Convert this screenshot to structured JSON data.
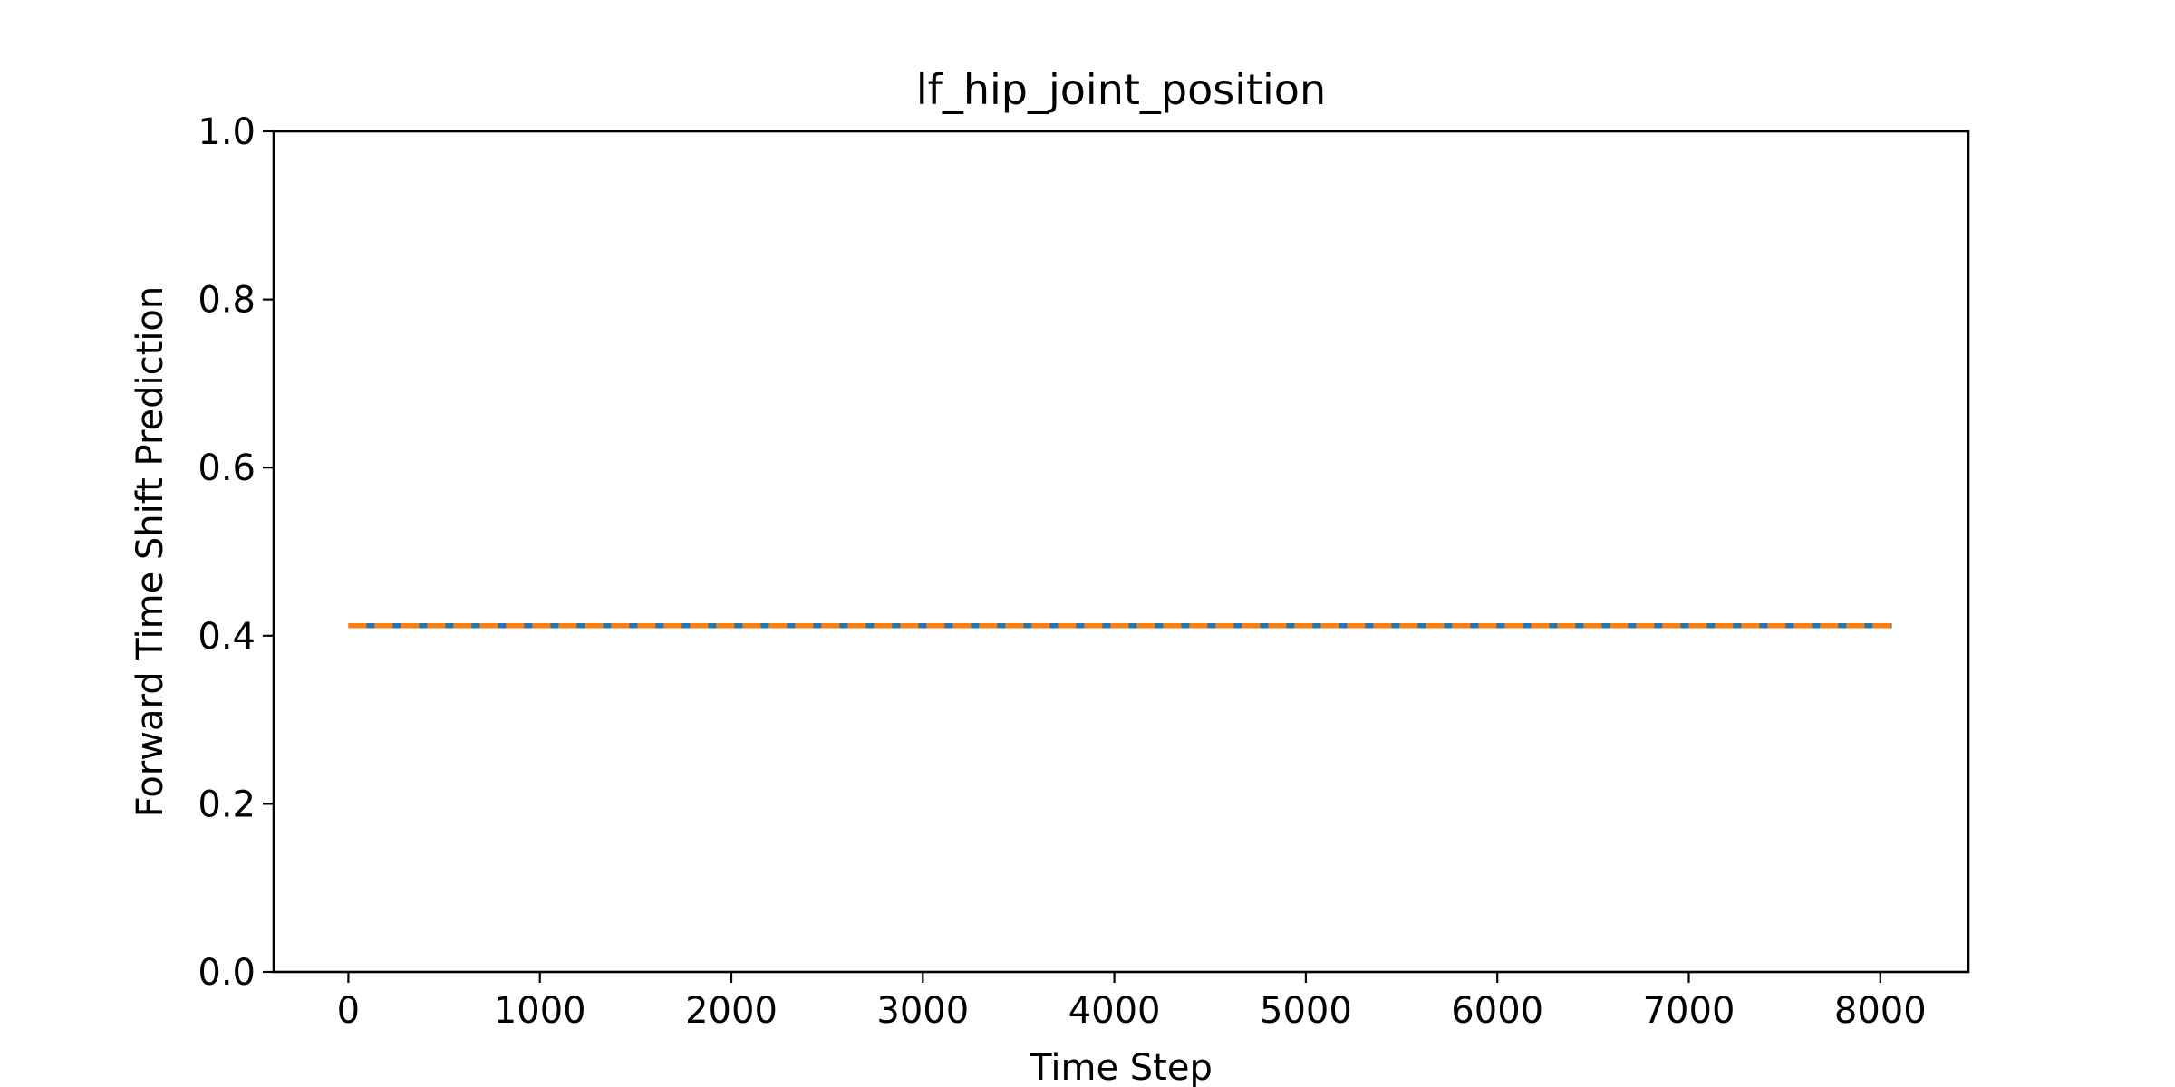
{
  "chart_data": {
    "type": "line",
    "title": "lf_hip_joint_position",
    "xlabel": "Time Step",
    "ylabel": "Forward Time Shift Prediction",
    "xlim": [
      -390,
      8460
    ],
    "ylim": [
      0.0,
      1.0
    ],
    "xticks": [
      0,
      1000,
      2000,
      3000,
      4000,
      5000,
      6000,
      7000,
      8000
    ],
    "xtick_labels": [
      "0",
      "1000",
      "2000",
      "3000",
      "4000",
      "5000",
      "6000",
      "7000",
      "8000"
    ],
    "yticks": [
      0.0,
      0.2,
      0.4,
      0.6,
      0.8,
      1.0
    ],
    "ytick_labels": [
      "0.0",
      "0.2",
      "0.4",
      "0.6",
      "0.8",
      "1.0"
    ],
    "grid": false,
    "series": [
      {
        "color": "#1f77b4",
        "style": "solid",
        "x": [
          0,
          8060
        ],
        "values": [
          0.412,
          0.412
        ]
      },
      {
        "color": "#ff7f0e",
        "style": "dashed",
        "x": [
          0,
          8060
        ],
        "values": [
          0.412,
          0.412
        ]
      }
    ]
  }
}
